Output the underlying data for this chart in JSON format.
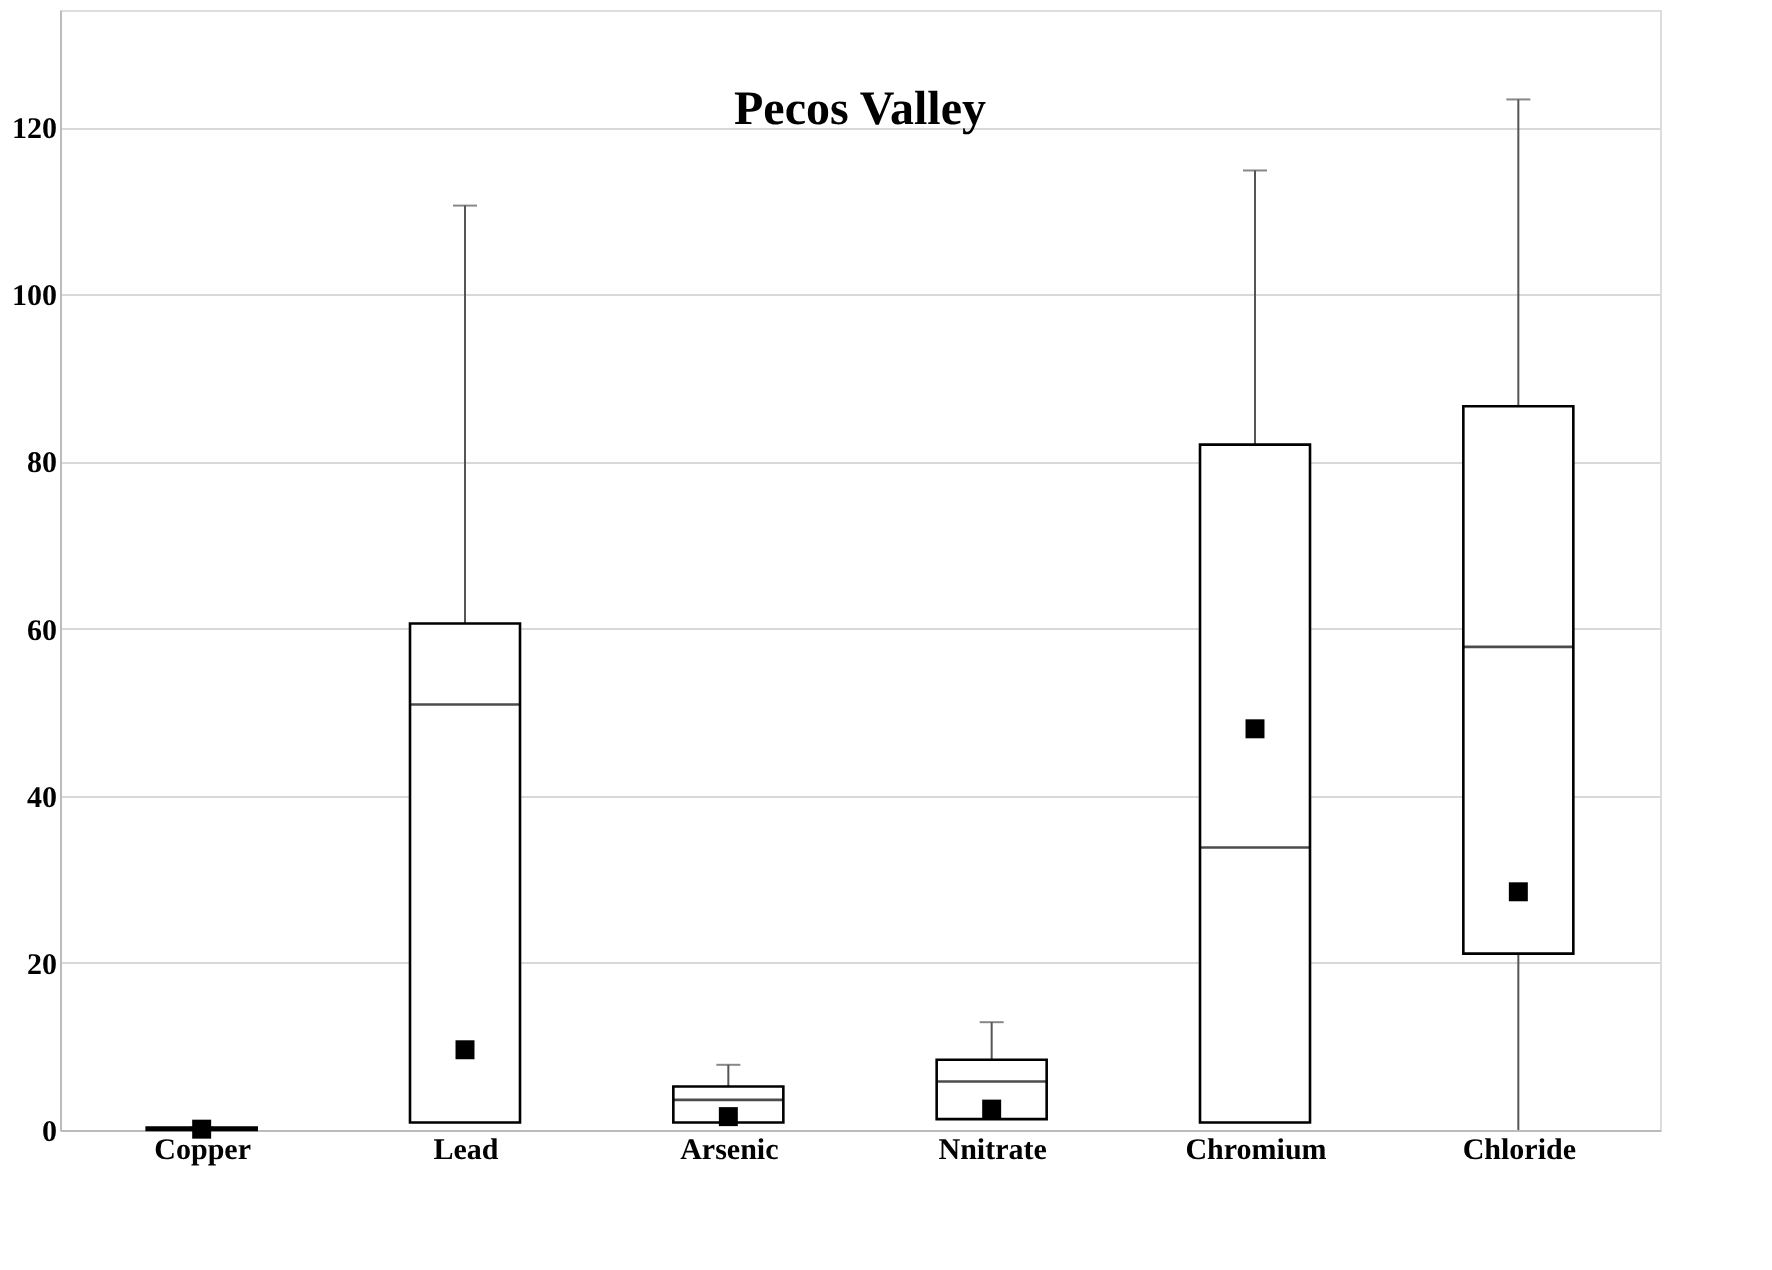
{
  "chart_data": {
    "type": "box",
    "title": "Pecos Valley",
    "categories": [
      "Copper",
      "Lead",
      "Arsenic",
      "Nnitrate",
      "Chromium",
      "Chloride"
    ],
    "boxes": [
      {
        "low": 0,
        "q1": 0,
        "median": 0.2,
        "q3": 0.3,
        "high": 0.3,
        "mean": 0.1
      },
      {
        "low": 0.9,
        "q1": 0.9,
        "median": 50.9,
        "q3": 60.6,
        "high": 110.6,
        "mean": 9.6
      },
      {
        "low": 0.9,
        "q1": 0.9,
        "median": 3.6,
        "q3": 5.2,
        "high": 7.8,
        "mean": 1.6
      },
      {
        "low": 1.3,
        "q1": 1.3,
        "median": 5.8,
        "q3": 8.4,
        "high": 12.9,
        "mean": 2.5
      },
      {
        "low": 0.9,
        "q1": 0.9,
        "median": 33.8,
        "q3": 82.0,
        "high": 114.8,
        "mean": 48.0
      },
      {
        "low": 0,
        "q1": 21.1,
        "median": 57.8,
        "q3": 86.6,
        "high": 123.3,
        "mean": 28.5
      }
    ],
    "color": "#000000",
    "marker": "square",
    "ylim": [
      0,
      134
    ],
    "yticks": [
      0,
      20,
      40,
      60,
      80,
      100,
      120
    ],
    "grid": "y"
  }
}
